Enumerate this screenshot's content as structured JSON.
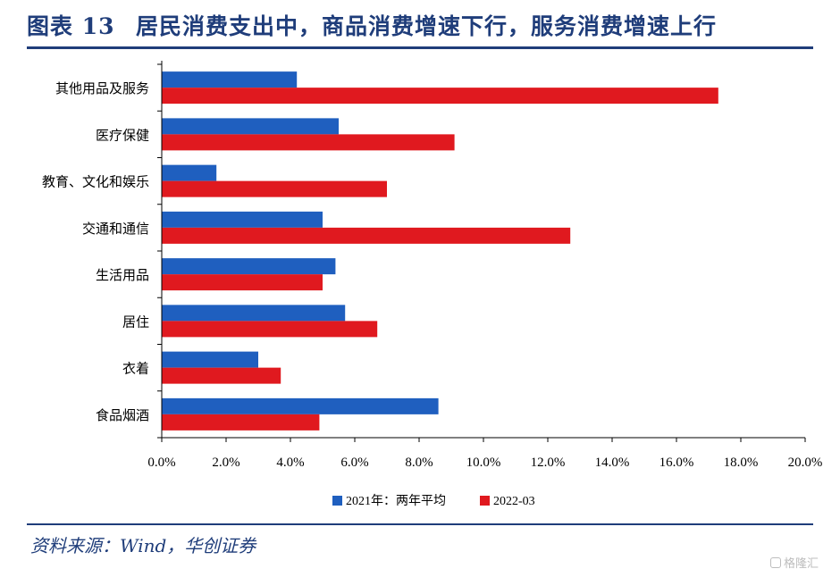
{
  "header": {
    "figure_label": "图表 13",
    "title": "居民消费支出中，商品消费增速下行，服务消费增速上行"
  },
  "footer": {
    "source": "资料来源：Wind，华创证券",
    "watermark": "格隆汇"
  },
  "colors": {
    "brand": "#1f3d7a",
    "series_2021": "#1f5fbf",
    "series_2022": "#e0191f"
  },
  "chart_data": {
    "type": "bar",
    "orientation": "horizontal",
    "categories": [
      "其他用品及服务",
      "医疗保健",
      "教育、文化和娱乐",
      "交通和通信",
      "生活用品",
      "居住",
      "衣着",
      "食品烟酒"
    ],
    "series": [
      {
        "name": "2021年：两年平均",
        "values": [
          4.2,
          5.5,
          1.7,
          5.0,
          5.4,
          5.7,
          3.0,
          8.6
        ]
      },
      {
        "name": "2022-03",
        "values": [
          17.3,
          9.1,
          7.0,
          12.7,
          5.0,
          6.7,
          3.7,
          4.9
        ]
      }
    ],
    "xlim": [
      0,
      20
    ],
    "xticks": [
      "0.0%",
      "2.0%",
      "4.0%",
      "6.0%",
      "8.0%",
      "10.0%",
      "12.0%",
      "14.0%",
      "16.0%",
      "18.0%",
      "20.0%"
    ],
    "grid": false,
    "legend_position": "bottom"
  }
}
